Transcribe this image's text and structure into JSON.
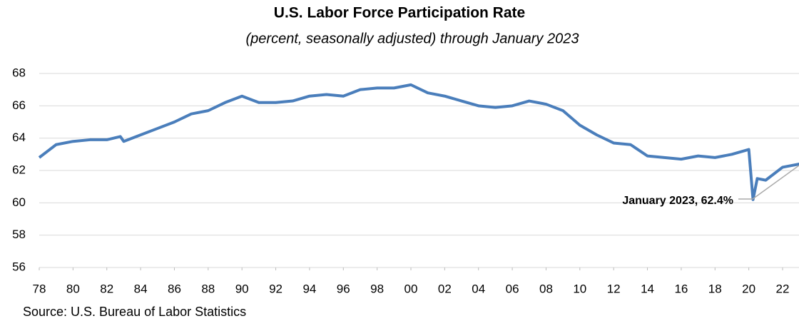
{
  "chart_data": {
    "type": "line",
    "title": "U.S. Labor Force Participation Rate",
    "subtitle": "(percent, seasonally adjusted) through January 2023",
    "source": "Source: U.S. Bureau of Labor Statistics",
    "annotation": "January 2023, 62.4%",
    "x": [
      1978,
      1978.5,
      1979,
      1980,
      1981,
      1982,
      1982.8,
      1983,
      1984,
      1985,
      1986,
      1987,
      1988,
      1989,
      1990,
      1991,
      1992,
      1993,
      1994,
      1995,
      1996,
      1997,
      1998,
      1999,
      2000,
      2001,
      2002,
      2003,
      2004,
      2005,
      2006,
      2007,
      2008,
      2009,
      2010,
      2011,
      2012,
      2013,
      2014,
      2015,
      2016,
      2017,
      2018,
      2019,
      2020,
      2020.25,
      2020.5,
      2021,
      2022,
      2022.5,
      2023
    ],
    "series": [
      {
        "name": "Labor Force Participation Rate",
        "color": "#4a7ebb",
        "values": [
          62.8,
          63.2,
          63.6,
          63.8,
          63.9,
          63.9,
          64.1,
          63.8,
          64.2,
          64.6,
          65.0,
          65.5,
          65.7,
          66.2,
          66.6,
          66.2,
          66.2,
          66.3,
          66.6,
          66.7,
          66.6,
          67.0,
          67.1,
          67.1,
          67.3,
          66.8,
          66.6,
          66.3,
          66.0,
          65.9,
          66.0,
          66.3,
          66.1,
          65.7,
          64.8,
          64.2,
          63.7,
          63.6,
          62.9,
          62.8,
          62.7,
          62.9,
          62.8,
          63.0,
          63.3,
          60.2,
          61.5,
          61.4,
          62.2,
          62.3,
          62.4
        ]
      }
    ],
    "xlim": [
      1978,
      2023
    ],
    "xticks": [
      {
        "value": 1978,
        "label": "78"
      },
      {
        "value": 1980,
        "label": "80"
      },
      {
        "value": 1982,
        "label": "82"
      },
      {
        "value": 1984,
        "label": "84"
      },
      {
        "value": 1986,
        "label": "86"
      },
      {
        "value": 1988,
        "label": "88"
      },
      {
        "value": 1990,
        "label": "90"
      },
      {
        "value": 1992,
        "label": "92"
      },
      {
        "value": 1994,
        "label": "94"
      },
      {
        "value": 1996,
        "label": "96"
      },
      {
        "value": 1998,
        "label": "98"
      },
      {
        "value": 2000,
        "label": "00"
      },
      {
        "value": 2002,
        "label": "02"
      },
      {
        "value": 2004,
        "label": "04"
      },
      {
        "value": 2006,
        "label": "06"
      },
      {
        "value": 2008,
        "label": "08"
      },
      {
        "value": 2010,
        "label": "10"
      },
      {
        "value": 2012,
        "label": "12"
      },
      {
        "value": 2014,
        "label": "14"
      },
      {
        "value": 2016,
        "label": "16"
      },
      {
        "value": 2018,
        "label": "18"
      },
      {
        "value": 2020,
        "label": "20"
      },
      {
        "value": 2022,
        "label": "22"
      }
    ],
    "ylim": [
      56,
      68
    ],
    "yticks": [
      56,
      58,
      60,
      62,
      64,
      66,
      68
    ],
    "grid": true
  }
}
